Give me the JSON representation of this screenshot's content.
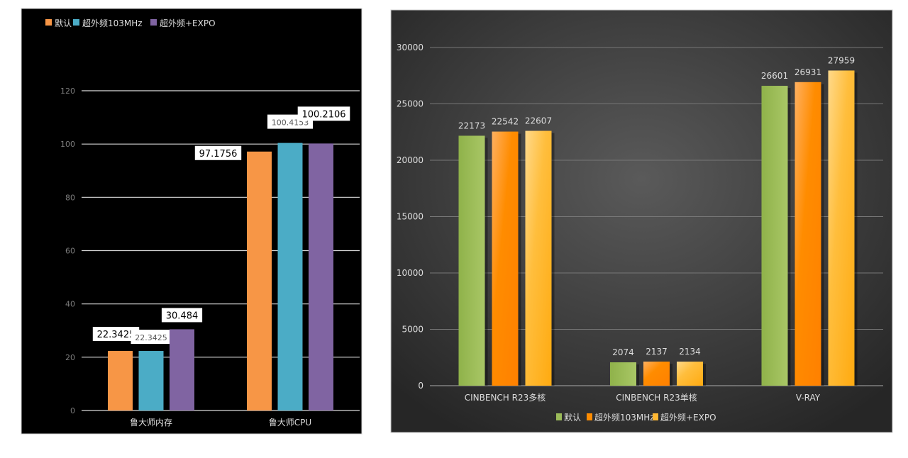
{
  "chart_data": [
    {
      "type": "bar",
      "title": "",
      "categories": [
        "鲁大师内存",
        "鲁大师CPU"
      ],
      "series": [
        {
          "name": "默认",
          "color": "#f79646",
          "values": [
            22.3425,
            97.1756
          ]
        },
        {
          "name": "超外频103MHz",
          "color": "#4bacc6",
          "values": [
            22.3425,
            100.4153
          ]
        },
        {
          "name": "超外频+EXPO",
          "color": "#8064a2",
          "values": [
            30.484,
            100.2106
          ]
        }
      ],
      "data_labels": [
        [
          "22.3425",
          "97.1756"
        ],
        [
          "22.3425",
          "100.4153"
        ],
        [
          "30.484",
          "100.2106"
        ]
      ],
      "yticks": [
        "0",
        "20",
        "40",
        "60",
        "80",
        "100",
        "120"
      ],
      "ylim": [
        0,
        120
      ],
      "grid": true,
      "legend": "top-left",
      "background": "#000000"
    },
    {
      "type": "bar",
      "title": "",
      "categories": [
        "CINBENCH R23多核",
        "CINBENCH R23单核",
        "V-RAY"
      ],
      "series": [
        {
          "name": "默认",
          "color": "#9bbb59",
          "values": [
            22173,
            2074,
            26601
          ]
        },
        {
          "name": "超外频103MHz",
          "color": "#ff8c00",
          "values": [
            22542,
            2137,
            26931
          ]
        },
        {
          "name": "超外频+EXPO",
          "color": "#ffb733",
          "values": [
            22607,
            2134,
            27959
          ]
        }
      ],
      "data_labels": [
        [
          "22173",
          "2074",
          "26601"
        ],
        [
          "22542",
          "2137",
          "26931"
        ],
        [
          "22607",
          "2134",
          "27959"
        ]
      ],
      "yticks": [
        "0",
        "5000",
        "10000",
        "15000",
        "20000",
        "25000",
        "30000"
      ],
      "ylim": [
        0,
        30000
      ],
      "grid": true,
      "legend": "bottom",
      "background": "#3a3a3a"
    }
  ]
}
